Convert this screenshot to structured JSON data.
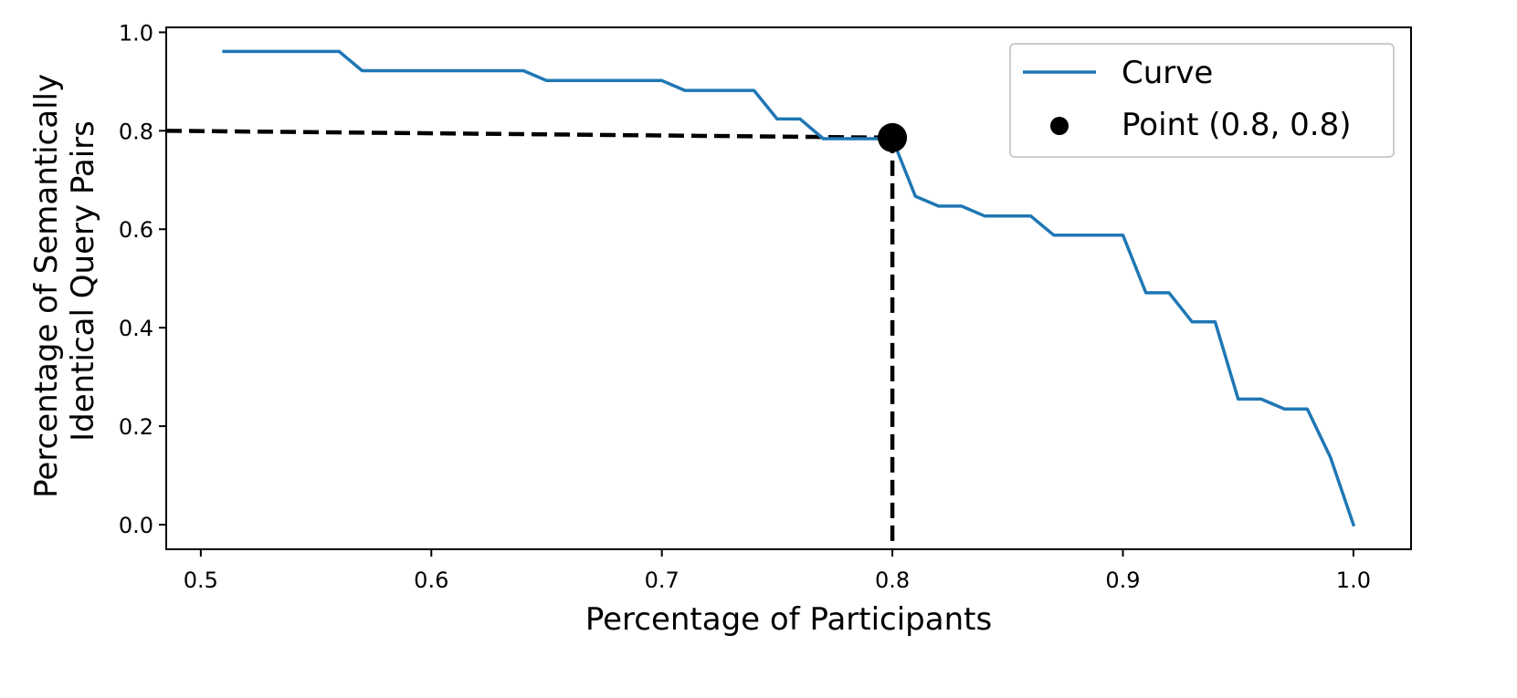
{
  "chart_data": {
    "type": "line",
    "xlabel": "Percentage of Participants",
    "ylabel_lines": [
      "Percentage of Semantically",
      "Identical  Query Pairs"
    ],
    "xlim": [
      0.485,
      1.025
    ],
    "ylim": [
      -0.05,
      1.01
    ],
    "x_ticks": [
      0.5,
      0.6,
      0.7,
      0.8,
      0.9,
      1.0
    ],
    "x_tick_labels": [
      "0.5",
      "0.6",
      "0.7",
      "0.8",
      "0.9",
      "1.0"
    ],
    "y_ticks": [
      0.0,
      0.2,
      0.4,
      0.6,
      0.8,
      1.0
    ],
    "y_tick_labels": [
      "0.0",
      "0.2",
      "0.4",
      "0.6",
      "0.8",
      "1.0"
    ],
    "grid": false,
    "legend_position": "top-right",
    "series": [
      {
        "name": "Curve",
        "kind": "line",
        "color": "#1f77b4",
        "x": [
          0.51,
          0.52,
          0.53,
          0.54,
          0.55,
          0.56,
          0.57,
          0.58,
          0.59,
          0.6,
          0.61,
          0.62,
          0.63,
          0.64,
          0.65,
          0.66,
          0.67,
          0.68,
          0.69,
          0.7,
          0.71,
          0.72,
          0.73,
          0.74,
          0.75,
          0.76,
          0.77,
          0.78,
          0.79,
          0.8,
          0.81,
          0.82,
          0.83,
          0.84,
          0.85,
          0.86,
          0.87,
          0.88,
          0.89,
          0.9,
          0.91,
          0.92,
          0.93,
          0.94,
          0.95,
          0.96,
          0.97,
          0.98,
          0.99,
          1.0
        ],
        "y": [
          0.961,
          0.961,
          0.961,
          0.961,
          0.961,
          0.961,
          0.922,
          0.922,
          0.922,
          0.922,
          0.922,
          0.922,
          0.922,
          0.922,
          0.902,
          0.902,
          0.902,
          0.902,
          0.902,
          0.902,
          0.882,
          0.882,
          0.882,
          0.882,
          0.824,
          0.824,
          0.784,
          0.784,
          0.784,
          0.784,
          0.667,
          0.647,
          0.647,
          0.627,
          0.627,
          0.627,
          0.588,
          0.588,
          0.588,
          0.588,
          0.471,
          0.471,
          0.412,
          0.412,
          0.255,
          0.255,
          0.235,
          0.235,
          0.137,
          0.0
        ]
      },
      {
        "name": "Point (0.8, 0.8)",
        "kind": "scatter",
        "color": "#000000",
        "x": [
          0.8
        ],
        "y": [
          0.786
        ]
      }
    ],
    "reference_lines": {
      "horizontal": {
        "x_from": 0.485,
        "x_to": 0.8,
        "y_from": 0.8,
        "y_to": 0.786
      },
      "vertical": {
        "x": 0.8,
        "y_from": 0.786,
        "y_to": -0.05
      }
    }
  }
}
